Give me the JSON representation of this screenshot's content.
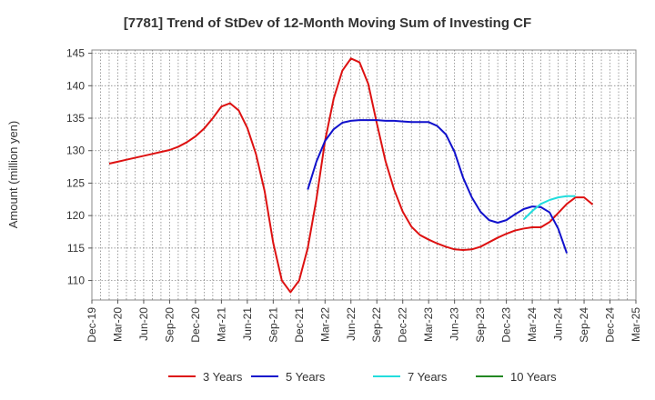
{
  "chart_data": {
    "type": "line",
    "title": "[7781]  Trend of StDev of 12-Month Moving Sum of Investing CF",
    "ylabel": "Amount (million yen)",
    "xlabel": "",
    "ylim": [
      107,
      145.5
    ],
    "yticks": [
      110,
      115,
      120,
      125,
      130,
      135,
      140,
      145
    ],
    "x_categories": [
      "Dec-19",
      "Mar-20",
      "Jun-20",
      "Sep-20",
      "Dec-20",
      "Mar-21",
      "Jun-21",
      "Sep-21",
      "Dec-21",
      "Mar-22",
      "Jun-22",
      "Sep-22",
      "Dec-22",
      "Mar-23",
      "Jun-23",
      "Sep-23",
      "Dec-23",
      "Mar-24",
      "Jun-24",
      "Sep-24",
      "Dec-24",
      "Mar-25"
    ],
    "grid": true,
    "legend_position": "bottom",
    "series": [
      {
        "name": "3 Years",
        "color": "#dd1111",
        "start_index": 2,
        "values": [
          128.0,
          128.3,
          128.6,
          128.9,
          129.2,
          129.5,
          129.8,
          130.1,
          130.6,
          131.3,
          132.2,
          133.4,
          135.0,
          136.8,
          137.3,
          136.2,
          133.5,
          129.5,
          123.8,
          115.8,
          110.0,
          108.2,
          110.0,
          115.0,
          122.5,
          131.5,
          138.0,
          142.3,
          144.2,
          143.6,
          140.3,
          134.2,
          128.4,
          124.0,
          120.6,
          118.3,
          117.0,
          116.3,
          115.7,
          115.2,
          114.8,
          114.7,
          114.8,
          115.2,
          115.9,
          116.6,
          117.2,
          117.7,
          118.0,
          118.2,
          118.2,
          119.0,
          120.4,
          121.8,
          122.8,
          122.8,
          121.7
        ]
      },
      {
        "name": "5 Years",
        "color": "#1111cc",
        "start_index": 25,
        "values": [
          124.0,
          128.3,
          131.5,
          133.3,
          134.3,
          134.6,
          134.7,
          134.7,
          134.7,
          134.6,
          134.6,
          134.5,
          134.4,
          134.4,
          134.4,
          133.8,
          132.5,
          129.8,
          125.8,
          122.8,
          120.6,
          119.3,
          118.9,
          119.3,
          120.2,
          121.0,
          121.4,
          121.3,
          120.5,
          118.0,
          114.2
        ]
      },
      {
        "name": "7 Years",
        "color": "#22dddd",
        "start_index": 50,
        "values": [
          119.4,
          120.7,
          121.8,
          122.4,
          122.8,
          123.0,
          123.0
        ]
      },
      {
        "name": "10 Years",
        "color": "#228822",
        "start_index": 0,
        "values": []
      }
    ]
  }
}
